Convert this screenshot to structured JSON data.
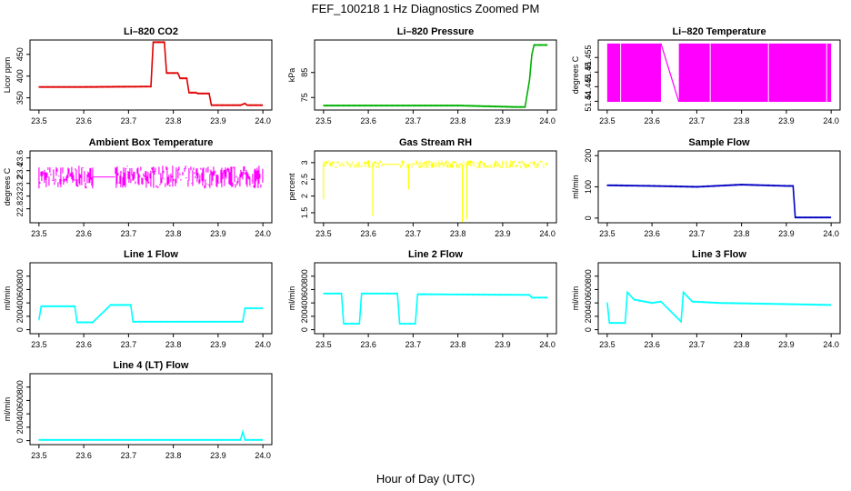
{
  "figure": {
    "title": "FEF_100218  1 Hz Diagnostics Zoomed PM",
    "xlabel": "Hour of Day (UTC)"
  },
  "chart_data": [
    {
      "type": "line",
      "title": "Li–820 CO2",
      "ylabel": "Licor ppm",
      "color": "#e00000",
      "xlim": [
        23.48,
        24.02
      ],
      "ylim": [
        322,
        483
      ],
      "yticks": [
        350,
        400,
        450
      ],
      "xticks": [
        23.5,
        23.6,
        23.7,
        23.8,
        23.9,
        24.0
      ],
      "x": [
        23.5,
        23.6,
        23.75,
        23.755,
        23.78,
        23.785,
        23.81,
        23.815,
        23.83,
        23.835,
        23.85,
        23.855,
        23.88,
        23.885,
        23.95,
        23.96,
        23.965,
        24.0
      ],
      "y": [
        375,
        375,
        376,
        478,
        478,
        407,
        407,
        395,
        395,
        362,
        362,
        360,
        360,
        333,
        333,
        337,
        333,
        333
      ]
    },
    {
      "type": "line",
      "title": "Li–820 Pressure",
      "ylabel": "kPa",
      "color": "#00b000",
      "xlim": [
        23.48,
        24.02
      ],
      "ylim": [
        70,
        98
      ],
      "yticks": [
        75,
        85
      ],
      "xticks": [
        23.5,
        23.6,
        23.7,
        23.8,
        23.9,
        24.0
      ],
      "x": [
        23.5,
        23.8,
        23.93,
        23.95,
        23.96,
        23.965,
        23.97,
        24.0
      ],
      "y": [
        71.8,
        71.8,
        71.2,
        71.2,
        82,
        92,
        96,
        96
      ]
    },
    {
      "type": "band",
      "title": "Li–820 Temperature",
      "ylabel": "degrees C",
      "color": "#ff00ff",
      "xlim": [
        23.48,
        24.02
      ],
      "ylim": [
        51.437,
        51.461
      ],
      "yticks": [
        51.44,
        51.445,
        51.45,
        51.455
      ],
      "xticks": [
        23.5,
        23.6,
        23.7,
        23.8,
        23.9,
        24.0
      ],
      "x": [
        23.5,
        23.62,
        23.66,
        24.0
      ],
      "y_low": [
        51.4398,
        51.4398,
        51.4398,
        51.4398
      ],
      "y_high": [
        51.4598,
        51.4598,
        51.4398,
        51.4598
      ],
      "gap": [
        23.62,
        23.66
      ]
    },
    {
      "type": "noise",
      "title": "Ambient Box Temperature",
      "ylabel": "degrees C",
      "color": "#ff00ff",
      "xlim": [
        23.48,
        24.02
      ],
      "ylim": [
        22.58,
        23.71
      ],
      "yticks": [
        22.8,
        23.0,
        23.2,
        23.4,
        23.6
      ],
      "xticks": [
        23.5,
        23.6,
        23.7,
        23.8,
        23.9,
        24.0
      ],
      "center": 23.3,
      "spread": 0.18,
      "x_start": 23.5,
      "x_end": 24.0,
      "gap": [
        23.62,
        23.67
      ]
    },
    {
      "type": "noise",
      "title": "Gas Stream RH",
      "ylabel": "percent",
      "color": "#ffff00",
      "xlim": [
        23.48,
        24.02
      ],
      "ylim": [
        1.2,
        3.35
      ],
      "yticks": [
        1.5,
        2.0,
        2.5,
        3.0
      ],
      "xticks": [
        23.5,
        23.6,
        23.7,
        23.8,
        23.9,
        24.0
      ],
      "center": 2.95,
      "spread": 0.12,
      "x_start": 23.5,
      "x_end": 24.0,
      "gap": [
        23.63,
        23.67
      ],
      "dips_x": [
        23.5,
        23.61,
        23.69,
        23.81,
        23.82
      ],
      "dips_y": [
        1.9,
        1.4,
        2.2,
        1.2,
        1.3
      ]
    },
    {
      "type": "line",
      "title": "Sample Flow",
      "ylabel": "ml/min",
      "color": "#0000c0",
      "xlim": [
        23.48,
        24.02
      ],
      "ylim": [
        -15,
        215
      ],
      "yticks": [
        0,
        100,
        200
      ],
      "xticks": [
        23.5,
        23.6,
        23.7,
        23.8,
        23.9,
        24.0
      ],
      "x": [
        23.5,
        23.6,
        23.7,
        23.8,
        23.9,
        23.915,
        23.92,
        24.0
      ],
      "y": [
        105,
        103,
        100,
        107,
        103,
        103,
        2,
        2
      ]
    },
    {
      "type": "line",
      "title": "Line 1 Flow",
      "ylabel": "ml/min",
      "color": "#00ffff",
      "xlim": [
        23.48,
        24.02
      ],
      "ylim": [
        -60,
        1000
      ],
      "yticks": [
        0,
        200,
        400,
        600,
        800
      ],
      "xticks": [
        23.5,
        23.6,
        23.7,
        23.8,
        23.9,
        24.0
      ],
      "x": [
        23.5,
        23.505,
        23.58,
        23.585,
        23.62,
        23.66,
        23.705,
        23.71,
        23.955,
        23.96,
        24.0
      ],
      "y": [
        150,
        350,
        350,
        110,
        110,
        370,
        370,
        120,
        120,
        320,
        320
      ]
    },
    {
      "type": "line",
      "title": "Line 2 Flow",
      "ylabel": "ml/min",
      "color": "#00ffff",
      "xlim": [
        23.48,
        24.02
      ],
      "ylim": [
        -60,
        1000
      ],
      "yticks": [
        0,
        200,
        400,
        600,
        800
      ],
      "xticks": [
        23.5,
        23.6,
        23.7,
        23.8,
        23.9,
        24.0
      ],
      "x": [
        23.5,
        23.54,
        23.545,
        23.58,
        23.585,
        23.665,
        23.67,
        23.705,
        23.71,
        23.96,
        23.965,
        24.0
      ],
      "y": [
        540,
        540,
        90,
        90,
        540,
        540,
        90,
        90,
        530,
        520,
        480,
        480
      ]
    },
    {
      "type": "line",
      "title": "Line 3 Flow",
      "ylabel": "ml/min",
      "color": "#00ffff",
      "xlim": [
        23.48,
        24.02
      ],
      "ylim": [
        -60,
        1000
      ],
      "yticks": [
        0,
        200,
        400,
        600,
        800
      ],
      "xticks": [
        23.5,
        23.6,
        23.7,
        23.8,
        23.9,
        24.0
      ],
      "x": [
        23.5,
        23.505,
        23.54,
        23.545,
        23.56,
        23.6,
        23.62,
        23.665,
        23.67,
        23.69,
        23.75,
        24.0
      ],
      "y": [
        400,
        100,
        100,
        560,
        450,
        400,
        420,
        120,
        560,
        420,
        400,
        370
      ]
    },
    {
      "type": "line",
      "title": "Line 4 (LT) Flow",
      "ylabel": "ml/min",
      "color": "#00ffff",
      "xlim": [
        23.48,
        24.02
      ],
      "ylim": [
        -60,
        1000
      ],
      "yticks": [
        0,
        200,
        400,
        600,
        800
      ],
      "xticks": [
        23.5,
        23.6,
        23.7,
        23.8,
        23.9,
        24.0
      ],
      "x": [
        23.5,
        23.95,
        23.955,
        23.96,
        24.0
      ],
      "y": [
        10,
        10,
        130,
        10,
        10
      ]
    }
  ]
}
